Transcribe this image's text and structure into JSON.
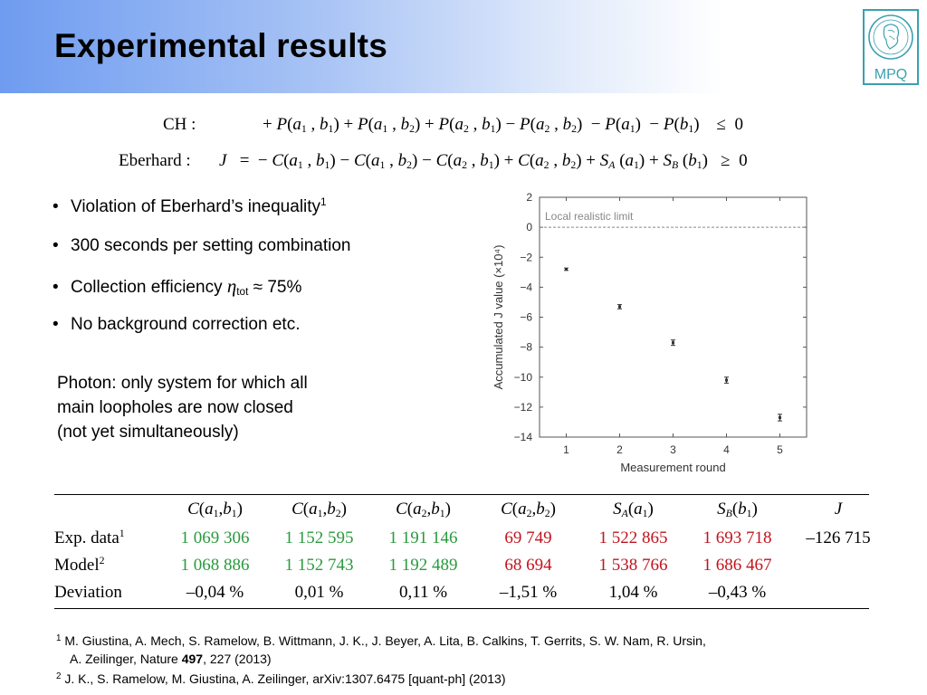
{
  "slide": {
    "title": "Experimental results",
    "logo_text": "MPQ"
  },
  "equations": {
    "ch_label": "CH :",
    "eberhard_label": "Eberhard :"
  },
  "bullets": {
    "b1_text": "Violation of Eberhard’s inequality",
    "b1_sup": "1",
    "b2": "300 seconds per setting combination",
    "b3_prefix": "Collection efficiency ",
    "b3_eta": "η",
    "b3_sub": "tot",
    "b3_suffix": " ≈ 75%",
    "b4": "No background correction etc."
  },
  "photon_text": {
    "line1": "Photon: only system for which all",
    "line2": "main loopholes are now closed",
    "line3": "(not yet simultaneously)"
  },
  "chart_data": {
    "type": "scatter",
    "x": [
      1,
      2,
      3,
      4,
      5
    ],
    "y": [
      -2.8,
      -5.3,
      -7.7,
      -10.2,
      -12.7
    ],
    "error": [
      0.08,
      0.14,
      0.18,
      0.2,
      0.22
    ],
    "xlabel": "Measurement round",
    "ylabel": "Accumulated J value (×10⁴)",
    "xlim": [
      0.5,
      5.5
    ],
    "ylim": [
      -14,
      2
    ],
    "xticks": [
      "1",
      "2",
      "3",
      "4",
      "5"
    ],
    "yticks": [
      "2",
      "0",
      "−2",
      "−4",
      "−6",
      "−8",
      "−10",
      "−12",
      "−14"
    ],
    "reference_line": {
      "y": 0,
      "label": "Local realistic limit",
      "style": "dashed"
    },
    "grid": false,
    "marker_color": "#333333"
  },
  "table": {
    "row_labels": {
      "exp": "Exp. data",
      "exp_sup": "1",
      "model": "Model",
      "model_sup": "2",
      "deviation": "Deviation"
    },
    "exp": [
      "1 069 306",
      "1 152 595",
      "1 191 146",
      "69 749",
      "1 522 865",
      "1 693 718",
      "–126 715"
    ],
    "model": [
      "1 068 886",
      "1 152 743",
      "1 192 489",
      "68 694",
      "1 538 766",
      "1 686 467"
    ],
    "deviation": [
      "–0,04 %",
      "0,01 %",
      "0,11 %",
      "–1,51 %",
      "1,04 %",
      "–0,43 %"
    ],
    "colors": {
      "green": "#2a9a3e",
      "red": "#c0141e"
    }
  },
  "references": {
    "r1_sup": "1",
    "r1_line1": " M. Giustina, A. Mech, S. Ramelow, B. Wittmann, J. K., J. Beyer, A. Lita, B. Calkins, T. Gerrits, S. W. Nam, R. Ursin,",
    "r1_line2_a": "A. Zeilinger, Nature ",
    "r1_line2_bold": "497",
    "r1_line2_b": ", 227 (2013)",
    "r2_sup": "2",
    "r2_line": " J. K., S. Ramelow, M. Giustina, A. Zeilinger, arXiv:1307.6475 [quant-ph] (2013)"
  }
}
